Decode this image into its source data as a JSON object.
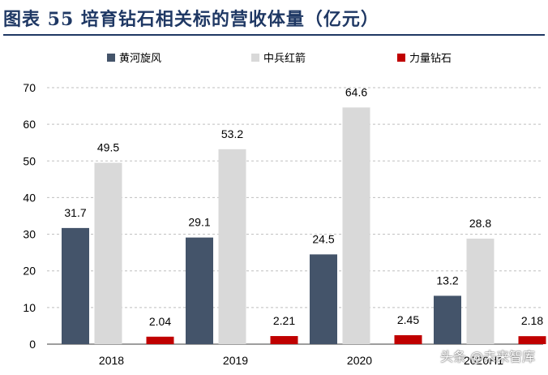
{
  "header": {
    "title": "图表 55  培育钻石相关标的营收体量（亿元）"
  },
  "watermark": "头条 @未来智库",
  "colors": {
    "title": "#1f3864",
    "series": [
      "#44546a",
      "#d9d9d9",
      "#c00000"
    ]
  },
  "chart_data": {
    "type": "bar",
    "title": "培育钻石相关标的营收体量（亿元）",
    "xlabel": "",
    "ylabel": "",
    "categories": [
      "2018",
      "2019",
      "2020",
      "2020H1"
    ],
    "series": [
      {
        "name": "黄河旋风",
        "values": [
          31.7,
          29.1,
          24.5,
          13.2
        ],
        "labels": [
          "31.7",
          "29.1",
          "24.5",
          "13.2"
        ]
      },
      {
        "name": "中兵红箭",
        "values": [
          49.5,
          53.2,
          64.6,
          28.8
        ],
        "labels": [
          "49.5",
          "53.2",
          "64.6",
          "28.8"
        ]
      },
      {
        "name": "力量钻石",
        "values": [
          2.04,
          2.21,
          2.45,
          2.18
        ],
        "labels": [
          "2.04",
          "2.21",
          "2.45",
          "2.18"
        ]
      }
    ],
    "ylim": [
      0,
      70
    ],
    "yticks": [
      0,
      10,
      20,
      30,
      40,
      50,
      60,
      70
    ],
    "grid": true,
    "legend": "top"
  }
}
